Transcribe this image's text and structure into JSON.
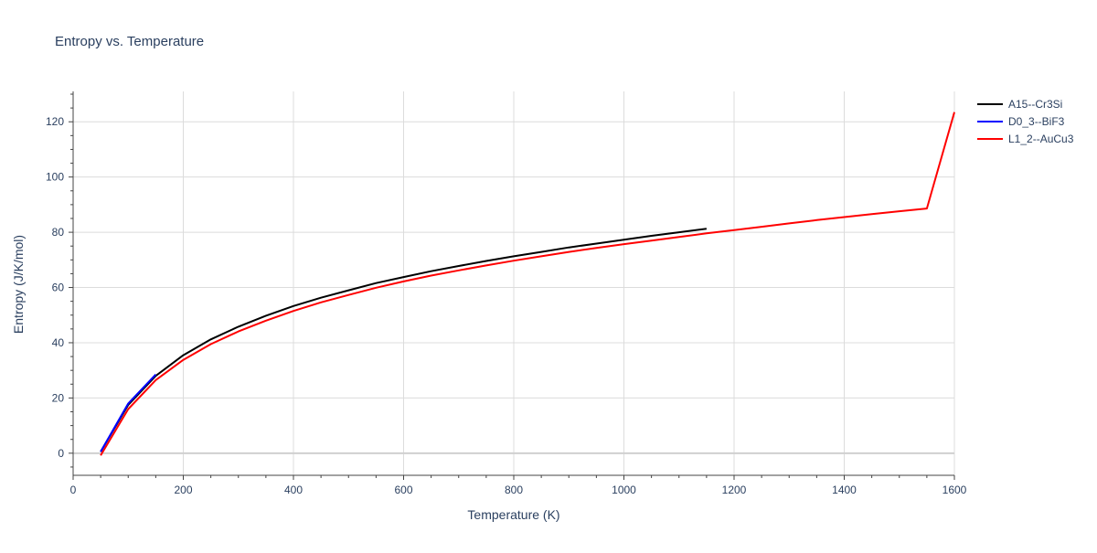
{
  "chart_data": {
    "type": "line",
    "title": "Entropy vs. Temperature",
    "xlabel": "Temperature (K)",
    "ylabel": "Entropy (J/K/mol)",
    "xlim": [
      0,
      1600
    ],
    "ylim": [
      -8,
      131
    ],
    "x_ticks": [
      0,
      200,
      400,
      600,
      800,
      1000,
      1200,
      1400,
      1600
    ],
    "y_ticks": [
      0,
      20,
      40,
      60,
      80,
      100,
      120
    ],
    "grid": true,
    "legend_position": "top-right, outside plot",
    "series": [
      {
        "name": "A15--Cr3Si",
        "color": "#000000",
        "x": [
          50,
          100,
          150,
          200,
          250,
          300,
          350,
          400,
          450,
          500,
          550,
          600,
          650,
          700,
          750,
          800,
          850,
          900,
          950,
          1000,
          1050,
          1100,
          1150
        ],
        "y": [
          0.5,
          17.5,
          28.0,
          35.5,
          41.2,
          45.8,
          49.8,
          53.3,
          56.3,
          59.0,
          61.6,
          63.8,
          65.9,
          67.8,
          69.6,
          71.3,
          72.9,
          74.5,
          75.9,
          77.3,
          78.7,
          80.0,
          81.3
        ]
      },
      {
        "name": "D0_3--BiF3",
        "color": "#0000ff",
        "x": [
          50,
          100,
          150
        ],
        "y": [
          0.5,
          18.0,
          28.5
        ]
      },
      {
        "name": "L1_2--AuCu3",
        "color": "#ff0000",
        "x": [
          50,
          100,
          150,
          200,
          250,
          300,
          350,
          400,
          450,
          500,
          550,
          600,
          650,
          700,
          750,
          800,
          850,
          900,
          950,
          1000,
          1050,
          1100,
          1150,
          1200,
          1250,
          1300,
          1350,
          1400,
          1450,
          1500,
          1550,
          1600
        ],
        "y": [
          -0.8,
          16.0,
          26.5,
          33.8,
          39.5,
          44.1,
          48.0,
          51.5,
          54.6,
          57.3,
          59.9,
          62.2,
          64.3,
          66.2,
          68.0,
          69.7,
          71.3,
          72.9,
          74.3,
          75.7,
          77.0,
          78.3,
          79.6,
          80.8,
          82.0,
          83.2,
          84.4,
          85.5,
          86.6,
          87.6,
          88.6,
          123.5
        ]
      }
    ]
  }
}
